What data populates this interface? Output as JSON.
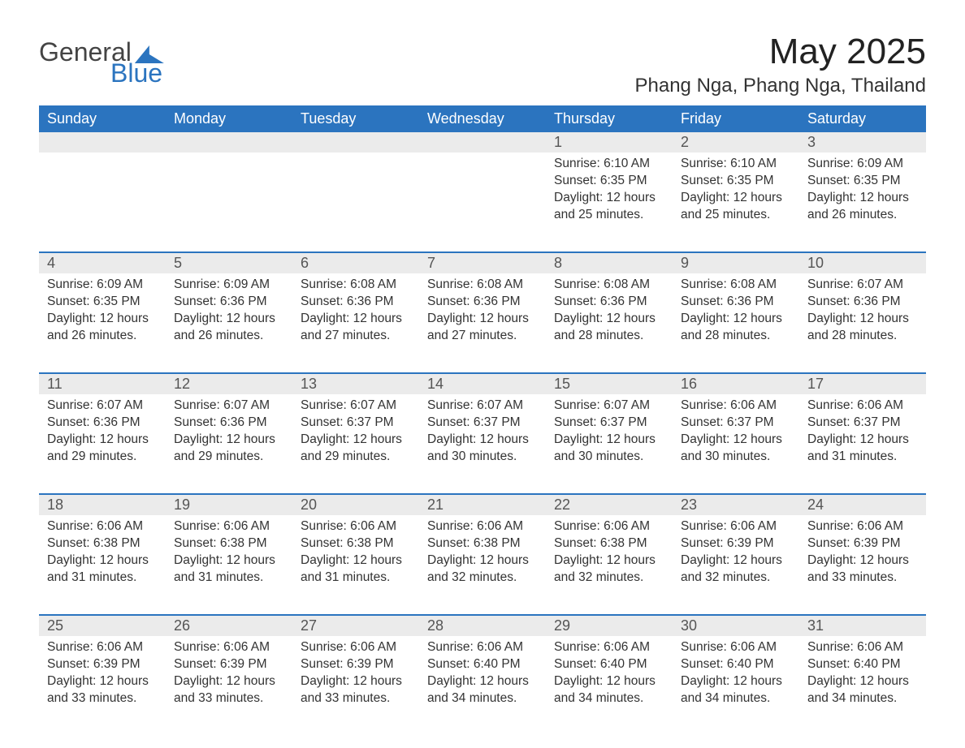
{
  "brand": {
    "word1": "General",
    "word2": "Blue",
    "accent_color": "#2b74bf",
    "text_color": "#444444"
  },
  "title": "May 2025",
  "location": "Phang Nga, Phang Nga, Thailand",
  "colors": {
    "header_bg": "#2b74bf",
    "header_text": "#ffffff",
    "band_bg": "#ebebeb",
    "rule": "#2b74bf",
    "body_text": "#333333",
    "page_bg": "#ffffff"
  },
  "day_names": [
    "Sunday",
    "Monday",
    "Tuesday",
    "Wednesday",
    "Thursday",
    "Friday",
    "Saturday"
  ],
  "labels": {
    "sunrise": "Sunrise: ",
    "sunset": "Sunset: ",
    "daylight": "Daylight: "
  },
  "weeks": [
    {
      "days": [
        null,
        null,
        null,
        null,
        {
          "n": "1",
          "sunrise": "6:10 AM",
          "sunset": "6:35 PM",
          "daylight": "12 hours and 25 minutes."
        },
        {
          "n": "2",
          "sunrise": "6:10 AM",
          "sunset": "6:35 PM",
          "daylight": "12 hours and 25 minutes."
        },
        {
          "n": "3",
          "sunrise": "6:09 AM",
          "sunset": "6:35 PM",
          "daylight": "12 hours and 26 minutes."
        }
      ]
    },
    {
      "days": [
        {
          "n": "4",
          "sunrise": "6:09 AM",
          "sunset": "6:35 PM",
          "daylight": "12 hours and 26 minutes."
        },
        {
          "n": "5",
          "sunrise": "6:09 AM",
          "sunset": "6:36 PM",
          "daylight": "12 hours and 26 minutes."
        },
        {
          "n": "6",
          "sunrise": "6:08 AM",
          "sunset": "6:36 PM",
          "daylight": "12 hours and 27 minutes."
        },
        {
          "n": "7",
          "sunrise": "6:08 AM",
          "sunset": "6:36 PM",
          "daylight": "12 hours and 27 minutes."
        },
        {
          "n": "8",
          "sunrise": "6:08 AM",
          "sunset": "6:36 PM",
          "daylight": "12 hours and 28 minutes."
        },
        {
          "n": "9",
          "sunrise": "6:08 AM",
          "sunset": "6:36 PM",
          "daylight": "12 hours and 28 minutes."
        },
        {
          "n": "10",
          "sunrise": "6:07 AM",
          "sunset": "6:36 PM",
          "daylight": "12 hours and 28 minutes."
        }
      ]
    },
    {
      "days": [
        {
          "n": "11",
          "sunrise": "6:07 AM",
          "sunset": "6:36 PM",
          "daylight": "12 hours and 29 minutes."
        },
        {
          "n": "12",
          "sunrise": "6:07 AM",
          "sunset": "6:36 PM",
          "daylight": "12 hours and 29 minutes."
        },
        {
          "n": "13",
          "sunrise": "6:07 AM",
          "sunset": "6:37 PM",
          "daylight": "12 hours and 29 minutes."
        },
        {
          "n": "14",
          "sunrise": "6:07 AM",
          "sunset": "6:37 PM",
          "daylight": "12 hours and 30 minutes."
        },
        {
          "n": "15",
          "sunrise": "6:07 AM",
          "sunset": "6:37 PM",
          "daylight": "12 hours and 30 minutes."
        },
        {
          "n": "16",
          "sunrise": "6:06 AM",
          "sunset": "6:37 PM",
          "daylight": "12 hours and 30 minutes."
        },
        {
          "n": "17",
          "sunrise": "6:06 AM",
          "sunset": "6:37 PM",
          "daylight": "12 hours and 31 minutes."
        }
      ]
    },
    {
      "days": [
        {
          "n": "18",
          "sunrise": "6:06 AM",
          "sunset": "6:38 PM",
          "daylight": "12 hours and 31 minutes."
        },
        {
          "n": "19",
          "sunrise": "6:06 AM",
          "sunset": "6:38 PM",
          "daylight": "12 hours and 31 minutes."
        },
        {
          "n": "20",
          "sunrise": "6:06 AM",
          "sunset": "6:38 PM",
          "daylight": "12 hours and 31 minutes."
        },
        {
          "n": "21",
          "sunrise": "6:06 AM",
          "sunset": "6:38 PM",
          "daylight": "12 hours and 32 minutes."
        },
        {
          "n": "22",
          "sunrise": "6:06 AM",
          "sunset": "6:38 PM",
          "daylight": "12 hours and 32 minutes."
        },
        {
          "n": "23",
          "sunrise": "6:06 AM",
          "sunset": "6:39 PM",
          "daylight": "12 hours and 32 minutes."
        },
        {
          "n": "24",
          "sunrise": "6:06 AM",
          "sunset": "6:39 PM",
          "daylight": "12 hours and 33 minutes."
        }
      ]
    },
    {
      "days": [
        {
          "n": "25",
          "sunrise": "6:06 AM",
          "sunset": "6:39 PM",
          "daylight": "12 hours and 33 minutes."
        },
        {
          "n": "26",
          "sunrise": "6:06 AM",
          "sunset": "6:39 PM",
          "daylight": "12 hours and 33 minutes."
        },
        {
          "n": "27",
          "sunrise": "6:06 AM",
          "sunset": "6:39 PM",
          "daylight": "12 hours and 33 minutes."
        },
        {
          "n": "28",
          "sunrise": "6:06 AM",
          "sunset": "6:40 PM",
          "daylight": "12 hours and 34 minutes."
        },
        {
          "n": "29",
          "sunrise": "6:06 AM",
          "sunset": "6:40 PM",
          "daylight": "12 hours and 34 minutes."
        },
        {
          "n": "30",
          "sunrise": "6:06 AM",
          "sunset": "6:40 PM",
          "daylight": "12 hours and 34 minutes."
        },
        {
          "n": "31",
          "sunrise": "6:06 AM",
          "sunset": "6:40 PM",
          "daylight": "12 hours and 34 minutes."
        }
      ]
    }
  ]
}
